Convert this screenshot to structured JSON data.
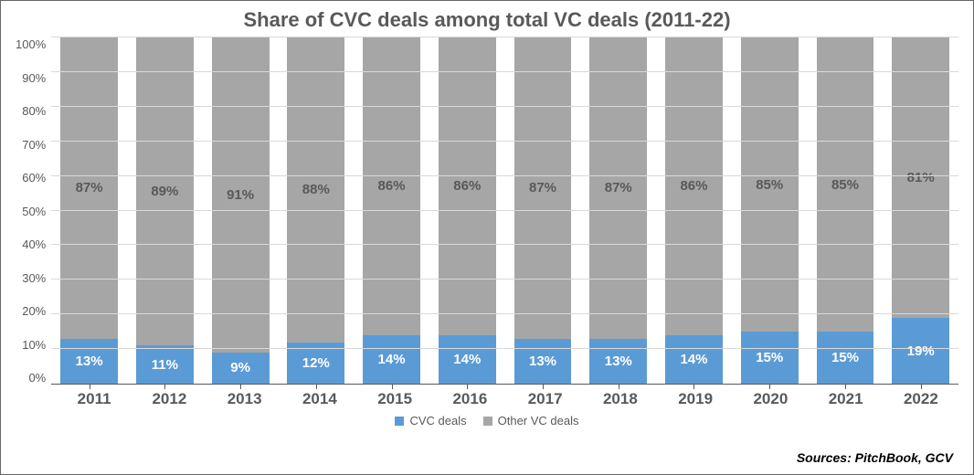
{
  "chart": {
    "type": "stacked-bar-100",
    "title": "Share of CVC deals among total VC deals (2011-22)",
    "title_fontsize": 22,
    "title_color": "#595959",
    "background_color": "#ffffff",
    "border_color": "#666666",
    "axis_color": "#595959",
    "grid_color": "#d9d9d9",
    "label_fontsize": 13,
    "xaxis_label_fontsize": 17,
    "in_bar_label_fontsize": 15,
    "ylim": [
      0,
      100
    ],
    "ytick_step": 10,
    "y_suffix": "%",
    "categories": [
      "2011",
      "2012",
      "2013",
      "2014",
      "2015",
      "2016",
      "2017",
      "2018",
      "2019",
      "2020",
      "2021",
      "2022"
    ],
    "series": [
      {
        "name": "CVC deals",
        "color": "#5b9bd5",
        "values": [
          13,
          11,
          9,
          12,
          14,
          14,
          13,
          13,
          14,
          15,
          15,
          19
        ],
        "label_color": "#ffffff"
      },
      {
        "name": "Other VC deals",
        "color": "#a6a6a6",
        "values": [
          87,
          89,
          91,
          88,
          86,
          86,
          87,
          87,
          86,
          85,
          85,
          81
        ],
        "label_color": "#595959"
      }
    ],
    "legend_position": "bottom-center",
    "bar_width_ratio": 0.76
  },
  "source_text": "Sources: PitchBook, GCV",
  "source_fontsize": 14
}
